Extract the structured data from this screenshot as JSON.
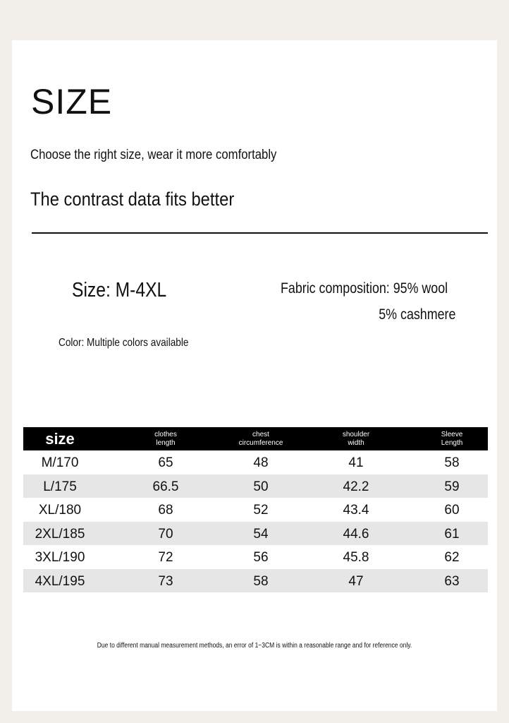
{
  "header": {
    "title": "SIZE",
    "subtitle": "Choose the right size, wear it more comfortably",
    "tagline": "The contrast data fits better"
  },
  "info": {
    "size_range": "Size: M-4XL",
    "fabric_line1": "Fabric composition: 95% wool",
    "fabric_line2": "5% cashmere",
    "color": "Color: Multiple colors available"
  },
  "table": {
    "columns": [
      [
        "size"
      ],
      [
        "clothes",
        "length"
      ],
      [
        "chest",
        "circumference"
      ],
      [
        "shoulder",
        "width"
      ],
      [
        "Sleeve",
        "Length"
      ]
    ],
    "rows": [
      [
        "M/170",
        65,
        48,
        41,
        58
      ],
      [
        "L/175",
        66.5,
        50,
        42.2,
        59
      ],
      [
        "XL/180",
        68,
        52,
        43.4,
        60
      ],
      [
        "2XL/185",
        70,
        54,
        44.6,
        61
      ],
      [
        "3XL/190",
        72,
        56,
        45.8,
        62
      ],
      [
        "4XL/195",
        73,
        58,
        47,
        63
      ]
    ]
  },
  "footer": {
    "note": "Due to different manual measurement methods, an error of 1~3CM is within a reasonable range and for reference only."
  }
}
